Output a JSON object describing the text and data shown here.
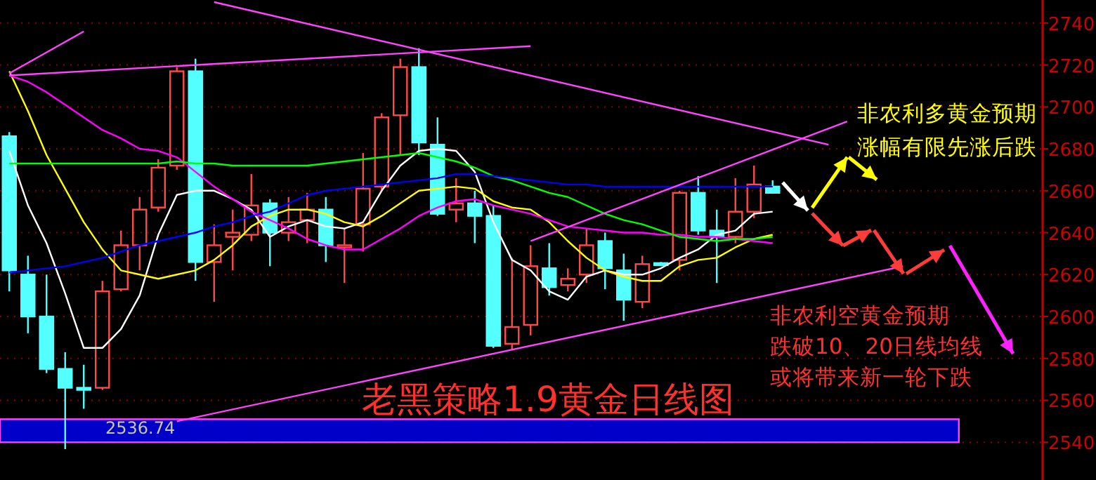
{
  "chart_data": {
    "type": "candlestick",
    "title": "老黑策略1.9黄金日线图",
    "categories": [
      null,
      null,
      null,
      null,
      null,
      null,
      null,
      null,
      null,
      null,
      null,
      null,
      null,
      null,
      null,
      null,
      null,
      null,
      null,
      null,
      null,
      null,
      null,
      null,
      null,
      null,
      null,
      null,
      null,
      null,
      null,
      null,
      null,
      null,
      null,
      null,
      null,
      null,
      null,
      null,
      null,
      null,
      null,
      null,
      null,
      null,
      null,
      null,
      null,
      null,
      null,
      null,
      null,
      null,
      null,
      null
    ],
    "ohlc": [
      [
        2686,
        2688,
        2612,
        2622
      ],
      [
        2620,
        2629,
        2592,
        2600
      ],
      [
        2600,
        2620,
        2573,
        2575
      ],
      [
        2575,
        2583,
        2536.74,
        2566
      ],
      [
        2566,
        2577,
        2556,
        2565
      ],
      [
        2566,
        2617,
        2565,
        2612
      ],
      [
        2613,
        2641,
        2612,
        2634
      ],
      [
        2634,
        2657,
        2622,
        2651
      ],
      [
        2652,
        2675,
        2650,
        2671
      ],
      [
        2672,
        2719,
        2670,
        2717
      ],
      [
        2717,
        2723,
        2617,
        2626
      ],
      [
        2626,
        2644,
        2607,
        2634
      ],
      [
        2638,
        2651,
        2622,
        2640
      ],
      [
        2639,
        2668,
        2636,
        2653
      ],
      [
        2654,
        2656,
        2624,
        2640
      ],
      [
        2640,
        2657,
        2636,
        2645
      ],
      [
        2646,
        2659,
        2635,
        2651
      ],
      [
        2651,
        2657,
        2626,
        2634
      ],
      [
        2633,
        2642,
        2616,
        2634
      ],
      [
        2644,
        2678,
        2631,
        2661
      ],
      [
        2662,
        2697,
        2660,
        2695
      ],
      [
        2696,
        2723,
        2677,
        2719
      ],
      [
        2719,
        2728,
        2677,
        2683
      ],
      [
        2682,
        2695,
        2648,
        2649
      ],
      [
        2651,
        2666,
        2645,
        2654
      ],
      [
        2654,
        2660,
        2635,
        2648
      ],
      [
        2648,
        2653,
        2585,
        2586
      ],
      [
        2587,
        2628,
        2584,
        2595
      ],
      [
        2596,
        2634,
        2591,
        2624
      ],
      [
        2623,
        2635,
        2610,
        2614
      ],
      [
        2615,
        2623,
        2612,
        2618
      ],
      [
        2620,
        2642,
        2616,
        2634
      ],
      [
        2636,
        2640,
        2613,
        2623
      ],
      [
        2622,
        2630,
        2598,
        2608
      ],
      [
        2607,
        2629,
        2604,
        2625
      ],
      [
        2625.5,
        2626,
        2624,
        2625
      ],
      [
        2627,
        2660,
        2622,
        2659
      ],
      [
        2659,
        2667,
        2639,
        2641
      ],
      [
        2641,
        2651,
        2616,
        2638
      ],
      [
        2638,
        2666,
        2635,
        2650
      ],
      [
        2650,
        2672,
        2647,
        2663
      ],
      [
        2662,
        2665,
        2659,
        2659
      ],
      null,
      null,
      null,
      null,
      null,
      null,
      null,
      null,
      null,
      null,
      null,
      null,
      null,
      null
    ],
    "series": [
      {
        "type": "line",
        "color": "#ffffff",
        "values": [
          2679,
          2653,
          2635,
          2611,
          2585,
          2585,
          2594,
          2610,
          2639,
          2658,
          2660,
          2660,
          2656,
          2651,
          2638,
          2643,
          2646,
          2643,
          2642,
          2645,
          2660,
          2672,
          2679,
          2680,
          2679,
          2669,
          2645,
          2627,
          2622,
          2612,
          2608,
          2619,
          2622,
          2620,
          2620,
          2623,
          2628,
          2632,
          2639,
          2641,
          2649,
          2650,
          null,
          null,
          null,
          null,
          null,
          null,
          null,
          null,
          null,
          null,
          null,
          null,
          null,
          null
        ]
      },
      {
        "type": "line",
        "color": "#ffff00",
        "values": [
          2717,
          2698,
          2677,
          2661,
          2645,
          2632,
          2622,
          2620,
          2618,
          2620,
          2622,
          2627,
          2634,
          2643,
          2648,
          2651,
          2651,
          2649,
          2645,
          2643,
          2648,
          2654,
          2660,
          2661,
          2662,
          2661,
          2655,
          2652,
          2651,
          2645,
          2636,
          2628,
          2622,
          2619,
          2617,
          2617,
          2624,
          2627,
          2628,
          2633,
          2637,
          2639,
          null,
          null,
          null,
          null,
          null,
          null,
          null,
          null,
          null,
          null,
          null,
          null,
          null,
          null
        ]
      },
      {
        "type": "line",
        "color": "#ff00ff",
        "values": [
          2715,
          2712,
          2707,
          2701,
          2695,
          2689,
          2685,
          2680,
          2679,
          2676,
          2669,
          2662,
          2656,
          2650,
          2646,
          2642,
          2637,
          2634,
          2632,
          2632,
          2637,
          2642,
          2648,
          2652,
          2655,
          2656,
          2653,
          2651,
          2649,
          2646,
          2643,
          2642,
          2641,
          2640,
          2640,
          2639,
          2639,
          2638,
          2638,
          2637,
          2636,
          2635,
          null,
          null,
          null,
          null,
          null,
          null,
          null,
          null,
          null,
          null,
          null,
          null,
          null,
          null
        ]
      },
      {
        "type": "line",
        "color": "#00ff00",
        "values": [
          2673,
          2673,
          2673,
          2673,
          2673,
          2673,
          2673,
          2673,
          2673,
          2674,
          2673,
          2673,
          2672,
          2672,
          2672,
          2672,
          2672,
          2673,
          2674,
          2675,
          2676,
          2677,
          2678,
          2676,
          2674,
          2671,
          2667,
          2665,
          2662,
          2659,
          2657,
          2653,
          2649,
          2646,
          2644,
          2641,
          2638,
          2637,
          2636,
          2637,
          2637,
          2638,
          null,
          null,
          null,
          null,
          null,
          null,
          null,
          null,
          null,
          null,
          null,
          null,
          null,
          null
        ]
      },
      {
        "type": "line",
        "color": "#0000ff",
        "values": [
          2621,
          2622,
          2623,
          2624,
          2626,
          2628,
          2631,
          2634,
          2636,
          2638,
          2640,
          2643,
          2645,
          2648,
          2650,
          2654,
          2658,
          2660,
          2661,
          2662,
          2663,
          2664,
          2665,
          2666,
          2668,
          2668,
          2667,
          2666,
          2665,
          2664,
          2663,
          2663,
          2662,
          2662,
          2662,
          2662,
          2662,
          2662,
          2662,
          2662,
          2662,
          2662,
          null,
          null,
          null,
          null,
          null,
          null,
          null,
          null,
          null,
          null,
          null,
          null,
          null,
          null
        ]
      },
      {
        "type": "line",
        "color": "#ff44ff",
        "values": [
          null,
          null,
          null,
          null,
          null,
          null,
          null,
          null,
          null,
          null,
          null,
          2750,
          null,
          null,
          null,
          null,
          null,
          null,
          null,
          null,
          null,
          null,
          null,
          null,
          null,
          null,
          null,
          null,
          null,
          null,
          null,
          null,
          null,
          null,
          null,
          null,
          null,
          null,
          null,
          null,
          null,
          null,
          null,
          null,
          2682,
          null,
          null,
          null,
          null,
          null,
          null,
          null,
          null,
          null,
          null,
          null
        ]
      },
      {
        "type": "line",
        "color": "#ff44ff",
        "values": [
          null,
          null,
          null,
          null,
          null,
          null,
          null,
          null,
          null,
          null,
          null,
          null,
          null,
          null,
          null,
          null,
          null,
          null,
          null,
          null,
          null,
          null,
          null,
          null,
          null,
          null,
          null,
          null,
          2636,
          null,
          null,
          null,
          null,
          null,
          null,
          null,
          null,
          null,
          null,
          null,
          null,
          null,
          null,
          null,
          null,
          2693,
          null,
          null,
          null,
          null,
          null,
          null,
          null,
          null,
          null,
          null
        ]
      },
      {
        "type": "line",
        "color": "#ff44ff",
        "values": [
          null,
          null,
          null,
          null,
          null,
          null,
          null,
          null,
          null,
          2550,
          null,
          null,
          null,
          null,
          null,
          null,
          null,
          null,
          null,
          null,
          null,
          null,
          null,
          null,
          null,
          null,
          null,
          null,
          null,
          null,
          null,
          null,
          null,
          null,
          null,
          null,
          null,
          null,
          null,
          null,
          null,
          null,
          null,
          null,
          null,
          null,
          null,
          null,
          2624,
          null,
          null,
          null,
          null,
          null,
          null,
          null
        ]
      },
      {
        "type": "line",
        "color": "#ff44ff",
        "values": [
          2716,
          null,
          null,
          null,
          2736,
          null,
          null,
          null,
          null,
          null,
          null,
          null,
          null,
          null,
          null,
          null,
          null,
          null,
          null,
          null,
          null,
          null,
          null,
          null,
          null,
          null,
          null,
          null,
          null,
          null,
          null,
          null,
          null,
          null,
          null,
          null,
          null,
          null,
          null,
          null,
          null,
          null,
          null,
          null,
          null,
          null,
          null,
          null,
          null,
          null,
          null,
          null,
          null,
          null,
          null,
          null
        ]
      },
      {
        "type": "line",
        "color": "#ff44ff",
        "values": [
          2715,
          null,
          null,
          null,
          null,
          null,
          null,
          null,
          null,
          null,
          null,
          null,
          null,
          null,
          null,
          null,
          null,
          null,
          null,
          null,
          null,
          null,
          null,
          null,
          null,
          null,
          null,
          null,
          2729,
          null,
          null,
          null,
          null,
          null,
          null,
          null,
          null,
          null,
          null,
          null,
          null,
          null,
          null,
          null,
          null,
          null,
          null,
          null,
          null,
          null,
          null,
          null,
          null,
          null,
          null,
          null
        ]
      }
    ],
    "ylim": [
      2522,
      2751
    ],
    "yticks": [
      2540,
      2560,
      2580,
      2600,
      2620,
      2640,
      2660,
      2680,
      2700,
      2720,
      2740
    ],
    "grid": "y",
    "tick_labels": "y",
    "bands": [
      {
        "axis": "y",
        "from": 2540,
        "to": 2551,
        "color": "#0000c8"
      }
    ],
    "annotations": [
      "非农利多黄金预期",
      "涨幅有限先涨后跌",
      "非农利空黄金预期",
      "跌破10、20日线均线",
      "或将带来新一轮下跌",
      "2536.74"
    ]
  }
}
